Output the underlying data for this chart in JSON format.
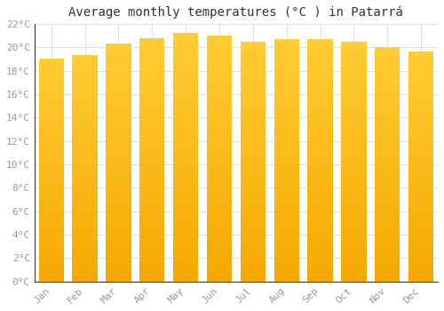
{
  "title": "Average monthly temperatures (°C ) in Patarrá",
  "months": [
    "Jan",
    "Feb",
    "Mar",
    "Apr",
    "May",
    "Jun",
    "Jul",
    "Aug",
    "Sep",
    "Oct",
    "Nov",
    "Dec"
  ],
  "temperatures": [
    19.0,
    19.3,
    20.3,
    20.8,
    21.2,
    21.0,
    20.5,
    20.7,
    20.7,
    20.5,
    20.0,
    19.6
  ],
  "bar_color_top": "#FFCC33",
  "bar_color_bottom": "#F5A800",
  "ylim": [
    0,
    22
  ],
  "yticks": [
    0,
    2,
    4,
    6,
    8,
    10,
    12,
    14,
    16,
    18,
    20,
    22
  ],
  "ytick_labels": [
    "0°C",
    "2°C",
    "4°C",
    "6°C",
    "8°C",
    "10°C",
    "12°C",
    "14°C",
    "16°C",
    "18°C",
    "20°C",
    "22°C"
  ],
  "background_color": "#ffffff",
  "grid_color": "#e0e0e0",
  "title_fontsize": 10,
  "tick_fontsize": 8,
  "font_family": "monospace",
  "bar_width": 0.75,
  "n_gradient_steps": 50
}
